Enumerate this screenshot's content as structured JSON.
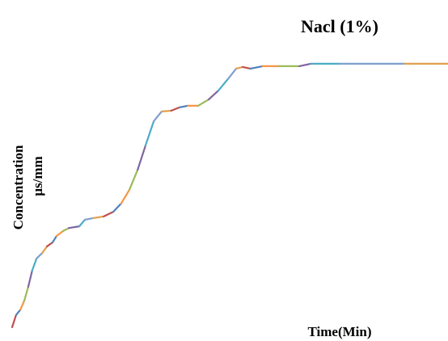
{
  "chart_data": {
    "type": "line",
    "title": "Nacl (1%)",
    "xlabel": "Time(Min)",
    "ylabel": [
      "Concentration",
      "µs/mm"
    ],
    "xlim": [
      0,
      100
    ],
    "ylim": [
      0,
      100
    ],
    "series": [
      {
        "colors": [
          "#c0504d",
          "#4f81bd",
          "#f79646",
          "#9bbb59",
          "#8064a2",
          "#4bacc6",
          "#7f9fcf",
          "#e0a050"
        ],
        "x": [
          0,
          0.9,
          1.9,
          2.8,
          3.7,
          4.6,
          5.6,
          6.9,
          8,
          9.3,
          10.2,
          11.7,
          13,
          15.4,
          16.7,
          18.6,
          21,
          23.2,
          25,
          26.9,
          28.8,
          30.6,
          32.5,
          34.3,
          36.5,
          38.4,
          40.3,
          42.7,
          45.1,
          47.3,
          49.5,
          51.4,
          52.9,
          54.7,
          57.5,
          61.2,
          65.9,
          68.6,
          75.1,
          90,
          100
        ],
        "values": [
          1.5,
          5.9,
          7.9,
          11.2,
          16.2,
          22.1,
          26.5,
          28.5,
          30.9,
          32.4,
          34.7,
          36.5,
          37.6,
          38.2,
          40.6,
          41.2,
          41.8,
          43.5,
          46.5,
          51.5,
          58.8,
          67.6,
          76.5,
          80,
          80.3,
          81.5,
          82.1,
          82.1,
          84.4,
          87.6,
          91.8,
          95.6,
          96.2,
          95.6,
          96.5,
          96.5,
          96.5,
          97.4,
          97.4,
          97.4,
          97.4
        ]
      }
    ]
  }
}
